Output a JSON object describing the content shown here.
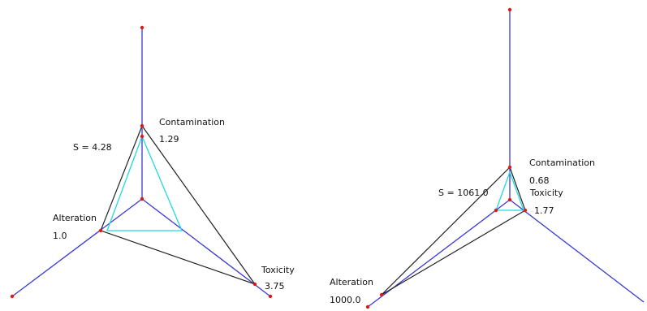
{
  "diagrams": [
    {
      "id": "left",
      "s_label": "S = 4.28",
      "axes": [
        {
          "name": "Contamination",
          "value": "1.29"
        },
        {
          "name": "Toxicity",
          "value": "3.75"
        },
        {
          "name": "Alteration",
          "value": "1.0"
        }
      ]
    },
    {
      "id": "right",
      "s_label": "S = 1061.0",
      "axes": [
        {
          "name": "Contamination",
          "value": "0.68"
        },
        {
          "name": "Toxicity",
          "value": "1.77"
        },
        {
          "name": "Alteration",
          "value": "1000.0"
        }
      ]
    }
  ],
  "colors": {
    "axis": "#3a3ad0",
    "outer_triangle": "#222222",
    "inner_triangle": "#22d8e0",
    "point": "#e01818",
    "text": "#111111"
  }
}
